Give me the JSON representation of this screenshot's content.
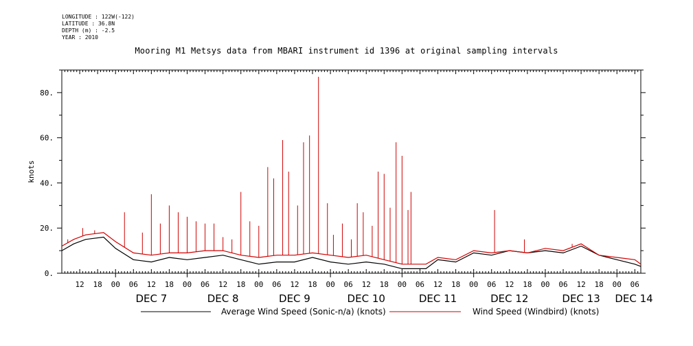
{
  "meta": {
    "longitude": "LONGITUDE : 122W(-122)",
    "latitude": "LATITUDE : 36.8N",
    "depth": "DEPTH (m) : -2.5",
    "year": "YEAR : 2010"
  },
  "chart_data": {
    "type": "line",
    "title": "Mooring M1 Metsys data from MBARI instrument id 1396 at original sampling intervals",
    "ylabel": "knots",
    "xlabel": "",
    "x_range_hours": [
      "2010-12-06 06:00",
      "2010-12-14 08:00"
    ],
    "ylim": [
      0,
      90
    ],
    "yticks": [
      0,
      20,
      40,
      60,
      80
    ],
    "ytick_labels": [
      "0.",
      "20.",
      "40.",
      "60.",
      "80."
    ],
    "hour_ticks": [
      "12",
      "18",
      "00",
      "06",
      "12",
      "18",
      "00",
      "06",
      "12",
      "18",
      "00",
      "06",
      "12",
      "18",
      "00",
      "06",
      "12",
      "18",
      "00",
      "06",
      "12",
      "18",
      "00",
      "06",
      "12",
      "18",
      "00",
      "06",
      "12",
      "18",
      "00",
      "06"
    ],
    "day_labels": [
      "DEC  7",
      "DEC  8",
      "DEC  9",
      "DEC 10",
      "DEC 11",
      "DEC 12",
      "DEC 13",
      "DEC 14"
    ],
    "legend_position": "bottom",
    "grid": false,
    "series": [
      {
        "name": "Average Wind Speed (Sonic-n/a) (knots)",
        "color": "#000000",
        "points": [
          [
            "2010-12-06 06:00",
            10
          ],
          [
            "2010-12-06 10:00",
            13
          ],
          [
            "2010-12-06 14:00",
            15
          ],
          [
            "2010-12-06 20:00",
            16
          ],
          [
            "2010-12-07 00:00",
            11
          ],
          [
            "2010-12-07 06:00",
            6
          ],
          [
            "2010-12-07 12:00",
            5
          ],
          [
            "2010-12-07 18:00",
            7
          ],
          [
            "2010-12-08 00:00",
            6
          ],
          [
            "2010-12-08 06:00",
            7
          ],
          [
            "2010-12-08 12:00",
            8
          ],
          [
            "2010-12-08 18:00",
            6
          ],
          [
            "2010-12-09 00:00",
            4
          ],
          [
            "2010-12-09 06:00",
            5
          ],
          [
            "2010-12-09 12:00",
            5
          ],
          [
            "2010-12-09 18:00",
            7
          ],
          [
            "2010-12-10 00:00",
            5
          ],
          [
            "2010-12-10 06:00",
            4
          ],
          [
            "2010-12-10 12:00",
            5
          ],
          [
            "2010-12-10 18:00",
            4
          ],
          [
            "2010-12-11 00:00",
            2
          ],
          [
            "2010-12-11 08:00",
            2
          ],
          [
            "2010-12-11 12:00",
            6
          ],
          [
            "2010-12-11 18:00",
            5
          ],
          [
            "2010-12-12 00:00",
            9
          ],
          [
            "2010-12-12 06:00",
            8
          ],
          [
            "2010-12-12 12:00",
            10
          ],
          [
            "2010-12-12 18:00",
            9
          ],
          [
            "2010-12-13 00:00",
            10
          ],
          [
            "2010-12-13 06:00",
            9
          ],
          [
            "2010-12-13 12:00",
            12
          ],
          [
            "2010-12-13 18:00",
            8
          ],
          [
            "2010-12-14 00:00",
            6
          ],
          [
            "2010-12-14 06:00",
            4
          ],
          [
            "2010-12-14 08:00",
            3
          ]
        ]
      },
      {
        "name": "Wind Speed (Windbird) (knots)",
        "color": "#d00000",
        "points": [
          [
            "2010-12-06 06:00",
            12
          ],
          [
            "2010-12-06 10:00",
            15
          ],
          [
            "2010-12-06 14:00",
            17
          ],
          [
            "2010-12-06 20:00",
            18
          ],
          [
            "2010-12-07 00:00",
            14
          ],
          [
            "2010-12-07 06:00",
            9
          ],
          [
            "2010-12-07 12:00",
            8
          ],
          [
            "2010-12-07 18:00",
            9
          ],
          [
            "2010-12-08 00:00",
            9
          ],
          [
            "2010-12-08 06:00",
            10
          ],
          [
            "2010-12-08 12:00",
            10
          ],
          [
            "2010-12-08 18:00",
            8
          ],
          [
            "2010-12-09 00:00",
            7
          ],
          [
            "2010-12-09 06:00",
            8
          ],
          [
            "2010-12-09 12:00",
            8
          ],
          [
            "2010-12-09 18:00",
            9
          ],
          [
            "2010-12-10 00:00",
            8
          ],
          [
            "2010-12-10 06:00",
            7
          ],
          [
            "2010-12-10 12:00",
            8
          ],
          [
            "2010-12-10 18:00",
            6
          ],
          [
            "2010-12-11 00:00",
            4
          ],
          [
            "2010-12-11 08:00",
            4
          ],
          [
            "2010-12-11 12:00",
            7
          ],
          [
            "2010-12-11 18:00",
            6
          ],
          [
            "2010-12-12 00:00",
            10
          ],
          [
            "2010-12-12 06:00",
            9
          ],
          [
            "2010-12-12 12:00",
            10
          ],
          [
            "2010-12-12 18:00",
            9
          ],
          [
            "2010-12-13 00:00",
            11
          ],
          [
            "2010-12-13 06:00",
            10
          ],
          [
            "2010-12-13 12:00",
            13
          ],
          [
            "2010-12-13 18:00",
            8
          ],
          [
            "2010-12-14 00:00",
            7
          ],
          [
            "2010-12-14 06:00",
            6
          ],
          [
            "2010-12-14 08:00",
            4
          ]
        ],
        "spikes": [
          [
            "2010-12-06 08:00",
            15
          ],
          [
            "2010-12-06 13:00",
            20
          ],
          [
            "2010-12-06 17:00",
            19
          ],
          [
            "2010-12-07 03:00",
            27
          ],
          [
            "2010-12-07 09:00",
            18
          ],
          [
            "2010-12-07 12:00",
            35
          ],
          [
            "2010-12-07 15:00",
            22
          ],
          [
            "2010-12-07 18:00",
            30
          ],
          [
            "2010-12-07 21:00",
            27
          ],
          [
            "2010-12-08 00:00",
            25
          ],
          [
            "2010-12-08 03:00",
            23
          ],
          [
            "2010-12-08 06:00",
            22
          ],
          [
            "2010-12-08 09:00",
            22
          ],
          [
            "2010-12-08 12:00",
            16
          ],
          [
            "2010-12-08 15:00",
            15
          ],
          [
            "2010-12-08 18:00",
            36
          ],
          [
            "2010-12-08 21:00",
            23
          ],
          [
            "2010-12-09 00:00",
            21
          ],
          [
            "2010-12-09 03:00",
            47
          ],
          [
            "2010-12-09 05:00",
            42
          ],
          [
            "2010-12-09 08:00",
            59
          ],
          [
            "2010-12-09 10:00",
            45
          ],
          [
            "2010-12-09 13:00",
            30
          ],
          [
            "2010-12-09 15:00",
            58
          ],
          [
            "2010-12-09 17:00",
            61
          ],
          [
            "2010-12-09 20:00",
            87
          ],
          [
            "2010-12-09 23:00",
            31
          ],
          [
            "2010-12-10 01:00",
            17
          ],
          [
            "2010-12-10 04:00",
            22
          ],
          [
            "2010-12-10 07:00",
            15
          ],
          [
            "2010-12-10 09:00",
            31
          ],
          [
            "2010-12-10 11:00",
            27
          ],
          [
            "2010-12-10 14:00",
            21
          ],
          [
            "2010-12-10 16:00",
            45
          ],
          [
            "2010-12-10 18:00",
            44
          ],
          [
            "2010-12-10 20:00",
            29
          ],
          [
            "2010-12-10 22:00",
            58
          ],
          [
            "2010-12-11 00:00",
            52
          ],
          [
            "2010-12-11 02:00",
            28
          ],
          [
            "2010-12-11 03:00",
            36
          ],
          [
            "2010-12-12 07:00",
            28
          ],
          [
            "2010-12-12 17:00",
            15
          ],
          [
            "2010-12-13 09:00",
            13
          ]
        ]
      }
    ]
  }
}
